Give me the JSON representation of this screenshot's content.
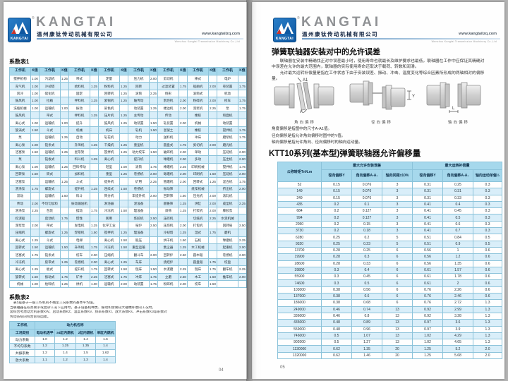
{
  "brand": {
    "wordmark": "KANGTAI",
    "logo_label": "KANGTAI",
    "reg_symbol": "®",
    "company_cn": "温州康钛传动机械有限公司",
    "website": "www.kangtailzq.com",
    "company_en": "Wenzhou Kangtai Transmission Machinery Co.,Ltd",
    "accent_blue": "#1668b3",
    "table_border": "#2e8fb3",
    "table_header_bg": "#a6d8ec",
    "row_alt_bg": "#d9eef9"
  },
  "page_left": {
    "page_number": "04",
    "table1_title": "系数表1",
    "table1": {
      "header_machine": "工作机",
      "header_k": "K值",
      "rows": [
        [
          "搅拌机构",
          "1.00",
          "汽滤机",
          "1.25",
          "带式",
          "",
          "定量",
          "",
          "压力机",
          "2.00",
          "剪切机",
          "",
          "棒式",
          "",
          "电炉",
          ""
        ],
        [
          "充气机",
          "1.00",
          "冷却塔",
          "",
          "给料机",
          "1.25",
          "粉料机",
          "1.25",
          "回转",
          "",
          "过滤装置",
          "1.75",
          "船舶机",
          "2.00",
          "卷装置",
          "1.75"
        ],
        [
          "风冷",
          "1.00",
          "硫化机",
          "",
          "固定",
          "",
          "回转机",
          "1.25",
          "滚筒",
          "2.25",
          "绕形",
          "",
          "滚筒式",
          "",
          "机动",
          ""
        ],
        [
          "鼓风机",
          "1.00",
          "拉箱",
          "",
          "拌料机",
          "1.25",
          "紫铜机",
          "1.25",
          "轴传动",
          "",
          "割坯机",
          "2.00",
          "粉碎机",
          "2.00",
          "校车",
          "1.75"
        ],
        [
          "洗瓶机械",
          "1.00",
          "运输机",
          "1.00",
          "振动",
          "",
          "染色机",
          "",
          "动装置",
          "1.25",
          "楼边机",
          "2.00",
          "泥浆机",
          "2.25",
          "泵",
          "1.75"
        ],
        [
          "鼓风机",
          "",
          "带式",
          "",
          "拌料机",
          "1.25",
          "压片机",
          "1.25",
          "主传动",
          "",
          "传动",
          "",
          "橡胶",
          "",
          "和面机",
          ""
        ],
        [
          "离心式",
          "1.00",
          "运输机",
          "1.00",
          "提升",
          "",
          "鼓风机",
          "1.25",
          "动装置",
          "1.50",
          "轧装置",
          "2.00",
          "机械",
          "",
          "动装置",
          ""
        ],
        [
          "旋涡式",
          "1.50",
          "斗式",
          "",
          "机械",
          "",
          "机床",
          "",
          "轧机",
          "1.50",
          "混凝土",
          "",
          "橡胶",
          "",
          "搅拌机",
          "1.75"
        ],
        [
          "泵",
          "",
          "运输机",
          "1.25",
          "自动",
          "",
          "轧花机",
          "",
          "动力",
          "",
          "送料机",
          "",
          "冲床",
          "",
          "磨浆机",
          "1.75"
        ],
        [
          "离心泵",
          "1.00",
          "链条式",
          "",
          "升降机",
          "1.25",
          "干燥机",
          "1.25",
          "重型机",
          "",
          "圆盘式",
          "1.75",
          "剪切机",
          "2.00",
          "磨光机",
          ""
        ],
        [
          "活塞泵",
          "1.50",
          "运输机",
          "1.25",
          "星形架",
          "",
          "搅拌机",
          "1.25",
          "动力绞车",
          "1.50",
          "破碎机",
          "2.00",
          "单动",
          "",
          "压延机",
          "2.00"
        ],
        [
          "泵",
          "",
          "链板式",
          "",
          "料斗机",
          "1.25",
          "离心机",
          "",
          "提升机",
          "",
          "球磨机",
          "2.00",
          "多动",
          "",
          "压出机",
          "2.00"
        ],
        [
          "离心泵",
          "1.00",
          "运输机",
          "1.25",
          "回料传动",
          "",
          "轻型",
          "1.00",
          "滚筒",
          "1.75",
          "棒磨机",
          "2.25",
          "印刷机械",
          "",
          "搅拌机",
          "1.75"
        ],
        [
          "回转泵",
          "1.50",
          "筒式",
          "",
          "加料机",
          "",
          "重型",
          "1.25",
          "卷扬机",
          "2.00",
          "砾磨机",
          "2.00",
          "印刷机",
          "1.50",
          "压延机",
          "2.00"
        ],
        [
          "活塞泵",
          "",
          "运输机",
          "1.25",
          "斗式",
          "",
          "提升机",
          "",
          "矿用",
          "2.25",
          "管磨机",
          "2.00",
          "回转式",
          "1.25",
          "混合机",
          "1.75"
        ],
        [
          "洗涤泵",
          "1.75",
          "螺旋式",
          "",
          "提升机",
          "1.25",
          "连续式",
          "1.50",
          "卷扬机",
          "",
          "振动筛",
          "",
          "纸浆机械",
          "",
          "挤出机",
          "2.00"
        ],
        [
          "双动",
          "",
          "运输机",
          "1.50",
          "料斗",
          "",
          "筛分机",
          "",
          "车提升机",
          "2.00",
          "回转筛",
          "1.50",
          "压光机",
          "2.00",
          "滚轧机",
          ""
        ],
        [
          "传动",
          "2.00",
          "不均匀加料",
          "",
          "振动输送机",
          "",
          "淋浴器",
          "",
          "泥设备",
          "",
          "圆锥筛",
          "1.25",
          "烘缸",
          "2.00",
          "成型机",
          "2.25"
        ],
        [
          "洗涤泵",
          "2.25",
          "包装",
          "",
          "摆动",
          "1.75",
          "冷冻机",
          "1.50",
          "理设备",
          "",
          "斜筛",
          "1.25",
          "打浆机",
          "2.00",
          "橡胶泵",
          ""
        ],
        [
          "挖泥船",
          "",
          "启动机",
          "1.75",
          "惯性",
          "",
          "民用",
          "",
          "炼胶机",
          "2.50",
          "压碎机",
          "",
          "切纸机",
          "2.25",
          "水泥机械",
          ""
        ],
        [
          "泥浆泵",
          "2.00",
          "带式",
          "",
          "发电机",
          "1.25",
          "化学工业",
          "",
          "窑炉",
          "2.50",
          "压坯机",
          "2.00",
          "打包机",
          "",
          "回转窑",
          "2.50"
        ],
        [
          "压缩机",
          "",
          "螺旋式",
          "1.25",
          "焊接机",
          "1.50",
          "搅拌机",
          "1.25",
          "理设备",
          "",
          "冷却塔",
          "1.25",
          "湿式",
          "1.75",
          "磨机",
          ""
        ],
        [
          "离心式",
          "1.25",
          "斗式",
          "",
          "电梯",
          "",
          "离心机",
          "1.50",
          "锻压",
          "",
          "烘干机",
          "1.50",
          "石机",
          "",
          "球磨机",
          "2.25"
        ],
        [
          "回转式",
          "1.50",
          "运输机",
          "1.50",
          "升降机",
          "1.75",
          "冷冻机",
          "1.50",
          "重型运输",
          "",
          "集尘器",
          "1.25",
          "木工机械",
          "",
          "起重机",
          "2.00"
        ],
        [
          "活塞式",
          "1.75",
          "链条式",
          "",
          "绞车",
          "2.00",
          "压缩机",
          "",
          "翻斗车",
          "2.00",
          "回转炉",
          "2.50",
          "圆木锯",
          "",
          "卷扬机",
          "2.00"
        ],
        [
          "冷冻机",
          "",
          "胶带式",
          "1.25",
          "卷扬机",
          "2.00",
          "离心式",
          "1.25",
          "车床",
          "",
          "烧结炉",
          "",
          "圆盘锯",
          "1.75",
          "绞盘",
          ""
        ],
        [
          "离心式",
          "1.25",
          "板式",
          "",
          "提升机",
          "1.75",
          "回转式",
          "1.50",
          "刨床",
          "1.50",
          "水泥磨",
          "2.25",
          "刨床",
          "1.75",
          "翻车机",
          "2.25"
        ],
        [
          "旋转式",
          "1.50",
          "振动式",
          "1.75",
          "矿井",
          "2.25",
          "活塞式",
          "1.75",
          "冲床",
          "1.75",
          "立磨",
          "2.50",
          "木工",
          "1.50",
          "推车机",
          "2.00"
        ],
        [
          "机械",
          "1.00",
          "给料机",
          "1.25",
          "烘机",
          "1.00",
          "运输机",
          "2.00",
          "动装置",
          "1.75",
          "粉碎机",
          "2.00",
          "绞车",
          "1.50",
          "",
          ""
        ]
      ]
    },
    "table2_title": "系数表2",
    "notes": [
      "表2是基于一般工作机的不确定工况系数的基本平均值。",
      "当联轴器在较高要求或复杂工况下应用时，基于设备机种类、振动和需要较大轴端补偿的工况时，",
      "需综合考虑动力机系数KW、启动系数KZ、温度系数Kθ、频率系数Kf、放大系数Ks、冲击系数Kd等系数对",
      "传动系统的综合影响因素。"
    ],
    "table2": {
      "corner": "工作机",
      "group": "动力机名称",
      "row_label_header": "工况类别",
      "col_headers": [
        "电动机透平",
        "≥4缸内燃机",
        "2缸内燃机",
        "单缸内燃机"
      ],
      "rows": [
        {
          "label": "动力系数",
          "values": [
            "1.0",
            "1.2",
            "1.4",
            "1.6"
          ]
        },
        {
          "label": "不均匀系数",
          "values": [
            "1.2",
            "1.25",
            "1.35",
            "1.4"
          ]
        },
        {
          "label": "共振系数",
          "values": [
            "1.2",
            "1.4",
            "1.5",
            "1.62"
          ]
        },
        {
          "label": "放大系数",
          "values": [
            "1.1",
            "1.2",
            "1.3",
            "1.4"
          ]
        }
      ]
    }
  },
  "page_right": {
    "page_number": "05",
    "title": "弹簧联轴器安装对中的允许误差",
    "para1": "联轴器在安装中精确找正对中误差最小时，使用寿命也就最长及维护要求也最低，联轴器在工作中应保证其精确对中误差在允许的最大范围内，联轴器的实际使用寿命还取决于载荷、转数和润滑。",
    "para2": "允许最大运转补偿量是指在工作状态下由于安装误差、振动、冲击、温度变化等综合因素所形成的两轴相对的偏移量。",
    "diagrams": [
      {
        "caption": "角向偏移",
        "dim_top": "A1",
        "dim_bottom": "A"
      },
      {
        "caption": "径向偏移",
        "dim": "Y"
      },
      {
        "caption": "轴向偏移",
        "dim": "L"
      }
    ],
    "notes": [
      "角度偏移是指图中的尺寸A-A1值。",
      "径向偏移是指允许角向偏移时图中的Y值。",
      "轴向偏移是指允许角向、径向偏移时的轴向运动量。"
    ],
    "table_title": "KTT10系列(基本型)弹簧联轴器允许偏移量",
    "table": {
      "col_torque": "公称转矩TnN.m",
      "group1": "最大允许安装误差",
      "group2": "最大运转补偿量",
      "sub_headers": [
        "径向偏移Y",
        "角向偏移A-A₁",
        "轴向间距±10%",
        "径向偏移Y",
        "角向偏移A-A₁",
        "轴向运动单偏½"
      ],
      "rows": [
        [
          "52",
          "0.15",
          "0.076",
          "3",
          "0.31",
          "0.25",
          "0.3"
        ],
        [
          "149",
          "0.15",
          "0.076",
          "3",
          "0.31",
          "0.31",
          "0.3"
        ],
        [
          "249",
          "0.15",
          "0.076",
          "3",
          "0.31",
          "0.33",
          "0.3"
        ],
        [
          "435",
          "0.2",
          "0.1",
          "3",
          "0.41",
          "0.4",
          "0.3"
        ],
        [
          "684",
          "0.2",
          "0.127",
          "3",
          "0.41",
          "0.45",
          "0.3"
        ],
        [
          "994",
          "0.2",
          "0.127",
          "3",
          "0.41",
          "0.5",
          "0.3"
        ],
        [
          "2050",
          "0.2",
          "0.15",
          "3",
          "0.41",
          "0.6",
          "0.3"
        ],
        [
          "3730",
          "0.2",
          "0.18",
          "3",
          "0.41",
          "0.7",
          "0.3"
        ],
        [
          "6280",
          "0.25",
          "0.2",
          "5",
          "0.51",
          "0.84",
          "0.5"
        ],
        [
          "9320",
          "0.25",
          "0.23",
          "5",
          "0.51",
          "0.9",
          "0.5"
        ],
        [
          "13700",
          "0.28",
          "0.25",
          "6",
          "0.56",
          "1",
          "0.6"
        ],
        [
          "19900",
          "0.28",
          "0.3",
          "6",
          "0.56",
          "1.2",
          "0.6"
        ],
        [
          "28600",
          "0.28",
          "0.33",
          "6",
          "0.56",
          "1.35",
          "0.6"
        ],
        [
          "39800",
          "0.3",
          "0.4",
          "6",
          "0.61",
          "1.57",
          "0.6"
        ],
        [
          "55900",
          "0.3",
          "0.45",
          "6",
          "0.61",
          "1.78",
          "0.6"
        ],
        [
          "74600",
          "0.3",
          "0.5",
          "6",
          "0.61",
          "2",
          "0.6"
        ],
        [
          "103000",
          "0.38",
          "0.56",
          "6",
          "0.76",
          "2.26",
          "0.6"
        ],
        [
          "137000",
          "0.38",
          "0.6",
          "6",
          "0.76",
          "2.46",
          "0.6"
        ],
        [
          "186000",
          "0.38",
          "0.68",
          "6",
          "0.76",
          "2.72",
          "1.3"
        ],
        [
          "249000",
          "0.46",
          "0.74",
          "13",
          "0.92",
          "2.99",
          "1.3"
        ],
        [
          "336000",
          "0.46",
          "0.8",
          "13",
          "0.92",
          "3.28",
          "1.3"
        ],
        [
          "435000",
          "0.48",
          "0.89",
          "13",
          "0.97",
          "3.6",
          "1.3"
        ],
        [
          "559000",
          "0.48",
          "0.96",
          "13",
          "0.97",
          "3.9",
          "1.3"
        ],
        [
          "746000",
          "0.5",
          "1.07",
          "13",
          "1.02",
          "4.29",
          "1.3"
        ],
        [
          "902000",
          "0.5",
          "1.27",
          "13",
          "1.02",
          "4.65",
          "1.3"
        ],
        [
          "1130000",
          "0.62",
          "1.35",
          "20",
          "1.25",
          "5.2",
          "2.0"
        ],
        [
          "1320000",
          "0.62",
          "1.46",
          "20",
          "1.25",
          "5.68",
          "2.0"
        ]
      ]
    }
  }
}
